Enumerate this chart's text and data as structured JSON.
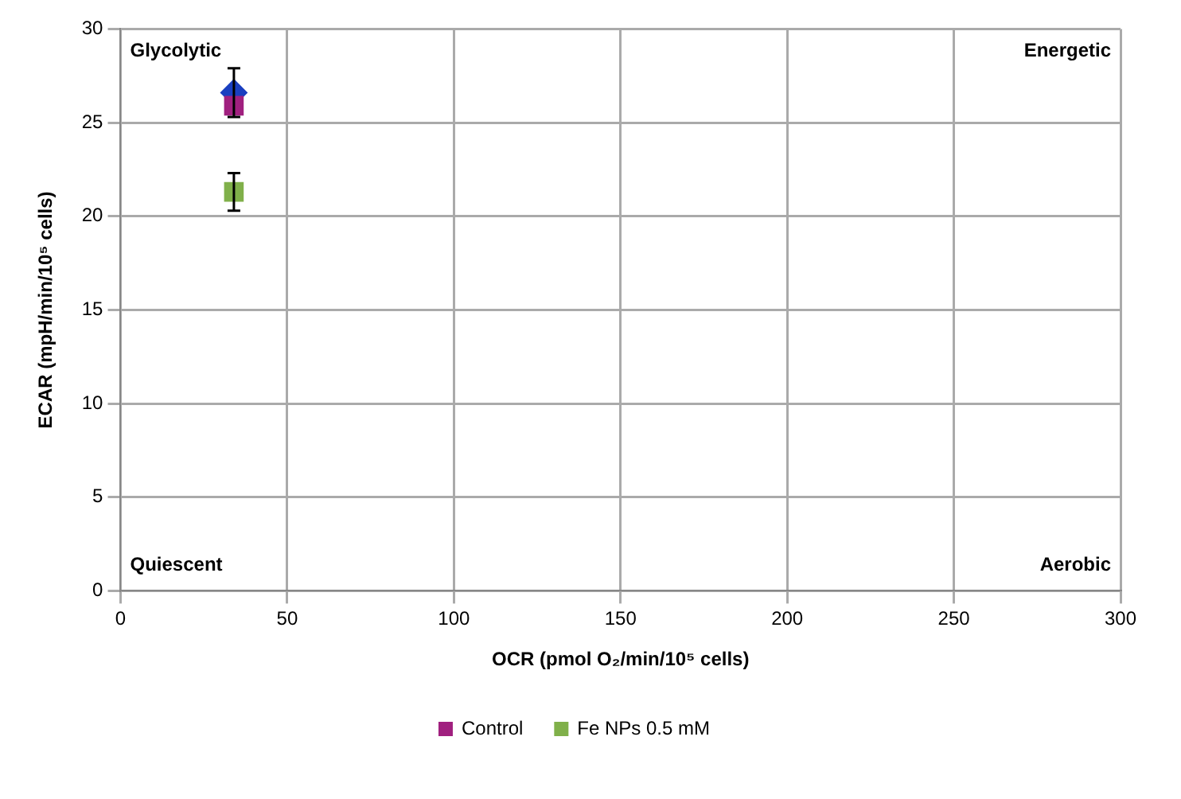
{
  "chart_data": {
    "type": "scatter",
    "xlabel": "OCR (pmol O₂/min/10⁵ cells)",
    "ylabel": "ECAR (mpH/min/10⁵ cells)",
    "annotations": [
      "Glycolytic",
      "Energetic",
      "Quiescent",
      "Aerobic"
    ],
    "x": [
      34
    ],
    "xlim": [
      0,
      300
    ],
    "xticks": [
      0,
      50,
      100,
      150,
      200,
      250,
      300
    ],
    "ylim": [
      0,
      30
    ],
    "yticks": [
      0,
      5,
      10,
      15,
      20,
      25,
      30
    ],
    "grid": true,
    "legend": "bottom",
    "series": [
      {
        "name": "Control",
        "color": "#a0207f",
        "marker": "square",
        "values": [
          25.9
        ]
      },
      {
        "color": "#1a3fc0",
        "marker": "diamond",
        "values": [
          26.6
        ],
        "errors": [
          1.3
        ]
      },
      {
        "name": "Fe NPs 0.5 mM",
        "color": "#80b04a",
        "marker": "square",
        "values": [
          21.3
        ],
        "errors": [
          1.0
        ]
      }
    ]
  }
}
